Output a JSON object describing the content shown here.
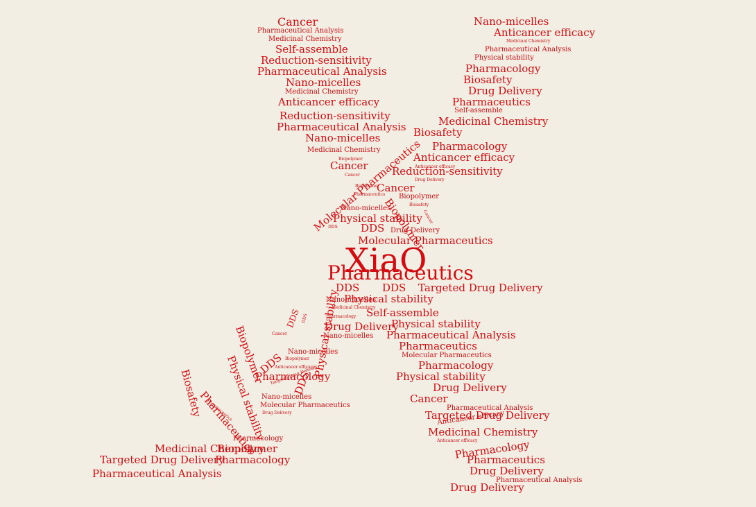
{
  "colors": {
    "background": "#f3eee3",
    "text": "#d20d12"
  },
  "words": [
    "XiaO",
    "Pharmaceutics",
    "Cancer",
    "Pharmaceutical Analysis",
    "Medicinal Chemistry",
    "Self-assemble",
    "Reduction-sensitivity",
    "Pharmaceutical Analysis",
    "Nano-micelles",
    "Medicinal Chemistry",
    "Anticancer efficacy",
    "Reduction-sensitivity",
    "Pharmaceutical Analysis",
    "Nano-micelles",
    "Medicinal Chemistry",
    "Biopolymer",
    "Cancer",
    "Molecular Pharmaceutics",
    "Cancer",
    "Biopolymer",
    "Pharmaceutics",
    "Biopolymer",
    "Nano-micelles",
    "Physical stability",
    "DDS",
    "DDS",
    "Drug Delivery",
    "Molecular Pharmaceutics",
    "Nano-micelles",
    "Anticancer efficacy",
    "Medicinal Chemistry",
    "Pharmaceutical Analysis",
    "Physical stability",
    "Pharmacology",
    "Biosafety",
    "Drug Delivery",
    "Pharmaceutics",
    "Self-assemble",
    "Medicinal Chemistry",
    "Biosafety",
    "Pharmacology",
    "Anticancer efficacy",
    "Anticancer efficacy",
    "Reduction-sensitivity",
    "Drug Delivery",
    "Cancer",
    "Biopolymer",
    "Biosafety",
    "Cancer",
    "DDS",
    "DDS",
    "Targeted Drug Delivery",
    "Nano-micelles",
    "Physical stability",
    "Medicinal Chemistry",
    "Pharmacology",
    "Self-assemble",
    "Physical stability",
    "Pharmaceutical Analysis",
    "Pharmaceutics",
    "Molecular Pharmaceutics",
    "Pharmacology",
    "Physical stability",
    "Drug Delivery",
    "Cancer",
    "Pharmaceutical Analysis",
    "Targeted Drug Delivery",
    "Anticancer efficacy",
    "Medicinal Chemistry",
    "Anticancer efficacy",
    "Pharmacology",
    "Pharmaceutics",
    "Drug Delivery",
    "Pharmaceutical Analysis",
    "Drug Delivery",
    "Physical stability",
    "DDS",
    "DDS",
    "Drug Delivery",
    "Nano-micelles",
    "DDS",
    "Cancer",
    "Nano-micelles",
    "Biopolymer",
    "Anticancer efficacy",
    "DDS",
    "Targeted Drug Delivery",
    "Pharmacology",
    "Biopolymer",
    "Physical stability",
    "Pharmaceutics",
    "Pharmaceutics",
    "Nano-micelles",
    "Molecular Pharmaceutics",
    "Drug Delivery",
    "Biosafety",
    "Pharmacology",
    "Medicinal Chemistry",
    "Biopolymer",
    "Targeted Drug Delivery",
    "Pharmacology",
    "Pharmaceutical Analysis"
  ]
}
